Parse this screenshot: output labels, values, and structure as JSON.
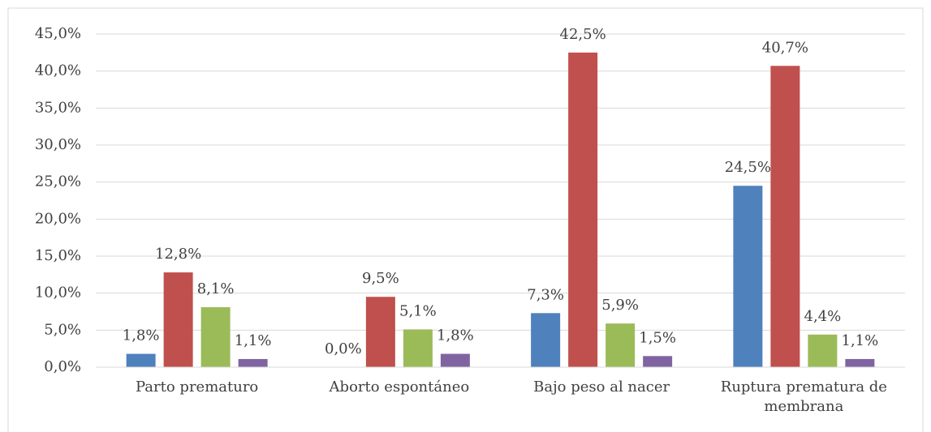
{
  "chart_data": {
    "type": "bar",
    "categories": [
      "Parto prematuro",
      "Aborto espontáneo",
      "Bajo peso al nacer",
      "Ruptura prematura de membrana"
    ],
    "series": [
      {
        "color": "#4f81bd",
        "values": [
          1.8,
          0.0,
          7.3,
          24.5
        ],
        "value_labels": [
          "1,8%",
          "0,0%",
          "7,3%",
          "24,5%"
        ]
      },
      {
        "color": "#c0504d",
        "values": [
          12.8,
          9.5,
          42.5,
          40.7
        ],
        "value_labels": [
          "12,8%",
          "9,5%",
          "42,5%",
          "40,7%"
        ]
      },
      {
        "color": "#9bbb59",
        "values": [
          8.1,
          5.1,
          5.9,
          4.4
        ],
        "value_labels": [
          "8,1%",
          "5,1%",
          "5,9%",
          "4,4%"
        ]
      },
      {
        "color": "#8064a2",
        "values": [
          1.1,
          1.8,
          1.5,
          1.1
        ],
        "value_labels": [
          "1,1%",
          "1,8%",
          "1,5%",
          "1,1%"
        ]
      }
    ],
    "ylim": [
      0,
      45
    ],
    "yticks": [
      {
        "value": 0,
        "label": "0,0%"
      },
      {
        "value": 5,
        "label": "5,0%"
      },
      {
        "value": 10,
        "label": "10,0%"
      },
      {
        "value": 15,
        "label": "15,0%"
      },
      {
        "value": 20,
        "label": "20,0%"
      },
      {
        "value": 25,
        "label": "25,0%"
      },
      {
        "value": 30,
        "label": "30,0%"
      },
      {
        "value": 35,
        "label": "35,0%"
      },
      {
        "value": 40,
        "label": "40,0%"
      },
      {
        "value": 45,
        "label": "45,0%"
      }
    ],
    "grid": true
  }
}
